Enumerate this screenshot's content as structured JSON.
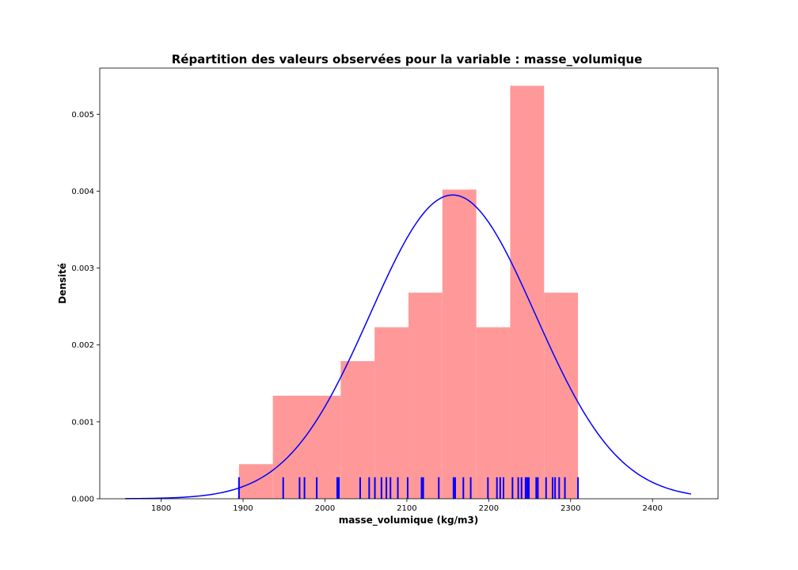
{
  "chart_data": {
    "type": "bar",
    "title": "Répartition des valeurs observées pour la variable : masse_volumique",
    "xlabel": "masse_volumique  (kg/m3)",
    "ylabel": "Densité",
    "xlim": [
      1725,
      2480
    ],
    "ylim": [
      0,
      0.0056
    ],
    "xticks": [
      1800,
      1900,
      2000,
      2100,
      2200,
      2300,
      2400
    ],
    "xtick_labels": [
      "1800",
      "1900",
      "2000",
      "2100",
      "2200",
      "2300",
      "2400"
    ],
    "yticks": [
      0,
      0.001,
      0.002,
      0.003,
      0.004,
      0.005
    ],
    "ytick_labels": [
      "0.000",
      "0.001",
      "0.002",
      "0.003",
      "0.004",
      "0.005"
    ],
    "grid": false,
    "histogram": {
      "color": "#ff9999",
      "bin_edges": [
        1895,
        1936.4,
        1977.8,
        2019.2,
        2060.6,
        2102.0,
        2143.4,
        2184.8,
        2226.2,
        2267.6,
        2309
      ],
      "densities": [
        0.00045,
        0.00134,
        0.00134,
        0.00179,
        0.00223,
        0.00268,
        0.00402,
        0.00223,
        0.00537,
        0.00268
      ]
    },
    "density_curve": {
      "color": "#0000ff",
      "mean": 2156,
      "std": 101,
      "x_range": [
        1756,
        2447
      ]
    },
    "rug": {
      "color": "#0000ff",
      "height": 0.00028,
      "values": [
        1895,
        1949,
        1969,
        1975,
        1990,
        2015,
        2017,
        2043,
        2054,
        2061,
        2069,
        2075,
        2080,
        2089,
        2101,
        2118,
        2120,
        2139,
        2157,
        2159,
        2169,
        2178,
        2199,
        2210,
        2214,
        2218,
        2229,
        2236,
        2240,
        2245,
        2247,
        2249,
        2258,
        2260,
        2270,
        2278,
        2281,
        2286,
        2293,
        2309
      ]
    }
  }
}
